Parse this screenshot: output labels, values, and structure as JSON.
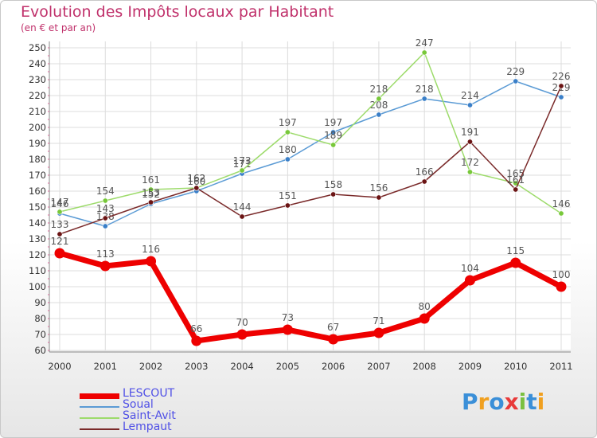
{
  "chart_data": {
    "type": "line",
    "title": "Evolution des Impôts locaux par Habitant",
    "subtitle": "(en € et par an)",
    "categories": [
      "2000",
      "2001",
      "2002",
      "2003",
      "2004",
      "2005",
      "2006",
      "2007",
      "2008",
      "2009",
      "2010",
      "2011"
    ],
    "ylim": [
      60,
      250
    ],
    "yticks": [
      60,
      70,
      80,
      90,
      100,
      110,
      120,
      130,
      140,
      150,
      160,
      170,
      180,
      190,
      200,
      210,
      220,
      230,
      240,
      250
    ],
    "grid": true,
    "legend_position": "bottom-left",
    "series": [
      {
        "name": "Soual",
        "color": "#5b9bd5",
        "point": "#3a7fc8",
        "values": [
          146,
          138,
          152,
          160,
          171,
          180,
          197,
          208,
          218,
          214,
          229,
          219
        ]
      },
      {
        "name": "Saint-Avit",
        "color": "#9ddb6b",
        "point": "#78c83a",
        "values": [
          147,
          154,
          161,
          162,
          173,
          197,
          189,
          218,
          247,
          172,
          165,
          146
        ]
      },
      {
        "name": "Lempaut",
        "color": "#7a2a2a",
        "point": "#6b1414",
        "values": [
          133,
          143,
          153,
          162,
          144,
          151,
          158,
          156,
          166,
          191,
          161,
          226
        ]
      },
      {
        "name": "LESCOUT",
        "color": "#ee0000",
        "point": "#ee0000",
        "values": [
          121,
          113,
          116,
          66,
          70,
          73,
          67,
          71,
          80,
          104,
          115,
          100
        ]
      }
    ],
    "legend_order": [
      "LESCOUT",
      "Soual",
      "Saint-Avit",
      "Lempaut"
    ]
  },
  "branding": {
    "logo": "Proxiti"
  }
}
